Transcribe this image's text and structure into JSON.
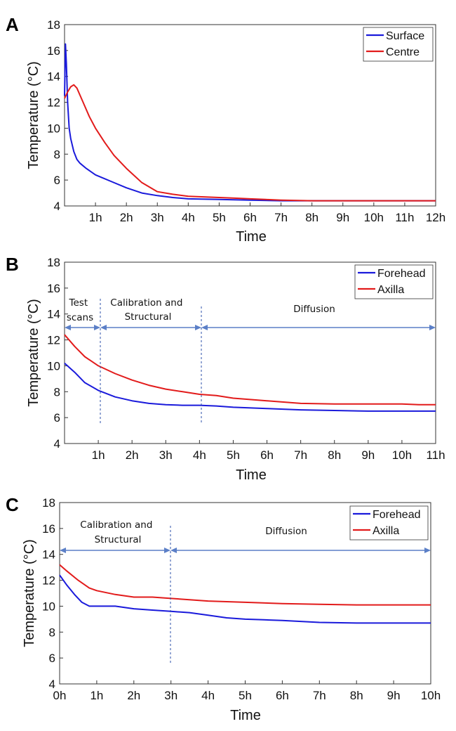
{
  "chart_data": [
    {
      "type": "line",
      "panel_label": "A",
      "xlabel": "Time",
      "ylabel": "Temperature (°C)",
      "xlim": [
        0,
        12
      ],
      "ylim": [
        4,
        18
      ],
      "xticks": [
        1,
        2,
        3,
        4,
        5,
        6,
        7,
        8,
        9,
        10,
        11,
        12
      ],
      "xtick_labels": [
        "1h",
        "2h",
        "3h",
        "4h",
        "5h",
        "6h",
        "7h",
        "8h",
        "9h",
        "10h",
        "11h",
        "12h"
      ],
      "yticks": [
        4,
        6,
        8,
        10,
        12,
        14,
        16,
        18
      ],
      "ytick_labels": [
        "4",
        "6",
        "8",
        "10",
        "12",
        "14",
        "16",
        "18"
      ],
      "legend_position": "top-right",
      "series": [
        {
          "name": "Surface",
          "color": "#1a1adb",
          "x": [
            0,
            0.03,
            0.06,
            0.1,
            0.15,
            0.2,
            0.3,
            0.4,
            0.5,
            0.7,
            1.0,
            1.5,
            2.0,
            2.5,
            3.0,
            3.5,
            4.0,
            5.0,
            6.0,
            7.0,
            8.0,
            10.0,
            12.0
          ],
          "values": [
            12.5,
            16.5,
            15.0,
            12.0,
            10.0,
            9.2,
            8.2,
            7.6,
            7.3,
            6.9,
            6.4,
            5.9,
            5.4,
            5.0,
            4.8,
            4.65,
            4.55,
            4.5,
            4.45,
            4.4,
            4.4,
            4.4,
            4.4
          ]
        },
        {
          "name": "Centre",
          "color": "#e21b1b",
          "x": [
            0,
            0.1,
            0.2,
            0.3,
            0.4,
            0.6,
            0.8,
            1.0,
            1.3,
            1.6,
            2.0,
            2.5,
            3.0,
            3.5,
            4.0,
            4.5,
            5.0,
            5.5,
            6.0,
            6.5,
            7.0,
            8.0,
            9.0,
            10.0,
            11.0,
            12.0
          ],
          "values": [
            12.3,
            12.8,
            13.2,
            13.35,
            13.1,
            12.0,
            10.9,
            10.0,
            8.9,
            7.9,
            6.9,
            5.8,
            5.1,
            4.9,
            4.75,
            4.7,
            4.65,
            4.6,
            4.55,
            4.5,
            4.45,
            4.4,
            4.4,
            4.4,
            4.4,
            4.4
          ]
        }
      ]
    },
    {
      "type": "line",
      "panel_label": "B",
      "xlabel": "Time",
      "ylabel": "Temperature (°C)",
      "xlim": [
        0,
        11
      ],
      "ylim": [
        4,
        18
      ],
      "xticks": [
        1,
        2,
        3,
        4,
        5,
        6,
        7,
        8,
        9,
        10,
        11
      ],
      "xtick_labels": [
        "1h",
        "2h",
        "3h",
        "4h",
        "5h",
        "6h",
        "7h",
        "8h",
        "9h",
        "10h",
        "11h"
      ],
      "yticks": [
        4,
        6,
        8,
        10,
        12,
        14,
        16,
        18
      ],
      "ytick_labels": [
        "4",
        "6",
        "8",
        "10",
        "12",
        "14",
        "16",
        "18"
      ],
      "legend_position": "top-right",
      "series": [
        {
          "name": "Forehead",
          "color": "#1a1adb",
          "x": [
            0,
            0.3,
            0.6,
            1.0,
            1.5,
            2.0,
            2.5,
            3.0,
            3.5,
            4.0,
            4.5,
            5.0,
            6.0,
            7.0,
            8.0,
            9.0,
            10.0,
            11.0
          ],
          "values": [
            10.2,
            9.5,
            8.7,
            8.1,
            7.6,
            7.3,
            7.1,
            7.0,
            6.95,
            6.95,
            6.9,
            6.8,
            6.7,
            6.6,
            6.55,
            6.5,
            6.5,
            6.5
          ]
        },
        {
          "name": "Axilla",
          "color": "#e21b1b",
          "x": [
            0,
            0.3,
            0.6,
            1.0,
            1.5,
            2.0,
            2.5,
            3.0,
            3.5,
            4.0,
            4.5,
            5.0,
            6.0,
            7.0,
            8.0,
            9.0,
            10.0,
            10.5,
            11.0
          ],
          "values": [
            12.4,
            11.5,
            10.7,
            10.0,
            9.4,
            8.9,
            8.5,
            8.2,
            8.0,
            7.8,
            7.7,
            7.5,
            7.3,
            7.1,
            7.05,
            7.05,
            7.05,
            7.0,
            7.0
          ]
        }
      ],
      "annotations": {
        "phase_1": "Test scans",
        "phase_2": "Calibration and Structural",
        "phase_3": "Diffusion",
        "boundaries_x": [
          1,
          4
        ]
      }
    },
    {
      "type": "line",
      "panel_label": "C",
      "xlabel": "Time",
      "ylabel": "Temperature (°C)",
      "xlim": [
        0,
        10
      ],
      "ylim": [
        4,
        18
      ],
      "xticks": [
        0,
        1,
        2,
        3,
        4,
        5,
        6,
        7,
        8,
        9,
        10
      ],
      "xtick_labels": [
        "0h",
        "1h",
        "2h",
        "3h",
        "4h",
        "5h",
        "6h",
        "7h",
        "8h",
        "9h",
        "10h"
      ],
      "yticks": [
        4,
        6,
        8,
        10,
        12,
        14,
        16,
        18
      ],
      "ytick_labels": [
        "4",
        "6",
        "8",
        "10",
        "12",
        "14",
        "16",
        "18"
      ],
      "legend_position": "top-right",
      "series": [
        {
          "name": "Forehead",
          "color": "#1a1adb",
          "x": [
            0,
            0.2,
            0.4,
            0.6,
            0.8,
            1.0,
            1.5,
            2.0,
            2.5,
            3.0,
            3.5,
            4.0,
            4.5,
            5.0,
            5.5,
            6.0,
            7.0,
            8.0,
            9.0,
            10.0
          ],
          "values": [
            12.4,
            11.6,
            10.9,
            10.3,
            10.0,
            10.0,
            10.0,
            9.8,
            9.7,
            9.6,
            9.5,
            9.3,
            9.1,
            9.0,
            8.95,
            8.9,
            8.75,
            8.7,
            8.7,
            8.7
          ]
        },
        {
          "name": "Axilla",
          "color": "#e21b1b",
          "x": [
            0,
            0.2,
            0.5,
            0.8,
            1.0,
            1.5,
            2.0,
            2.5,
            3.0,
            3.5,
            4.0,
            5.0,
            6.0,
            7.0,
            8.0,
            9.0,
            10.0
          ],
          "values": [
            13.2,
            12.7,
            12.0,
            11.4,
            11.2,
            10.9,
            10.7,
            10.7,
            10.6,
            10.5,
            10.4,
            10.3,
            10.2,
            10.15,
            10.1,
            10.1,
            10.1
          ]
        }
      ],
      "annotations": {
        "phase_1": "Calibration and Structural",
        "phase_2": "Diffusion",
        "boundaries_x": [
          3
        ]
      }
    }
  ]
}
